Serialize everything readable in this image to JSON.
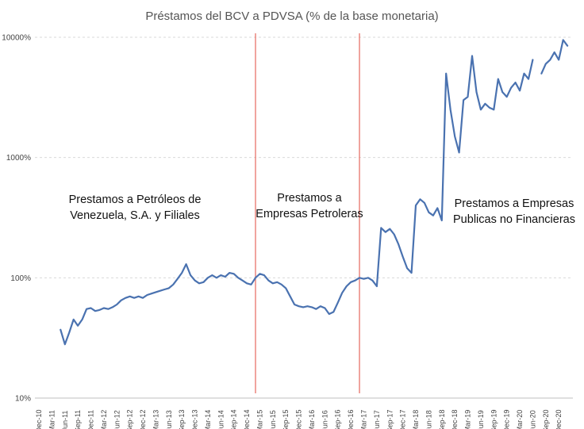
{
  "chart_data": {
    "type": "line",
    "title": "Préstamos del BCV a PDVSA (% de la base monetaria)",
    "xlabel": "",
    "ylabel": "",
    "y_scale": "log",
    "ylim": [
      10,
      10000
    ],
    "y_ticks": [
      {
        "value": 10,
        "label": "10%"
      },
      {
        "value": 100,
        "label": "100%"
      },
      {
        "value": 1000,
        "label": "1000%"
      },
      {
        "value": 10000,
        "label": "10000%"
      }
    ],
    "x_ticks": [
      "Dec-10",
      "Mar-11",
      "Jun-11",
      "Sep-11",
      "Dec-11",
      "Mar-12",
      "Jun-12",
      "Sep-12",
      "Dec-12",
      "Mar-13",
      "Jun-13",
      "Sep-13",
      "Dec-13",
      "Mar-14",
      "Jun-14",
      "Sep-14",
      "Dec-14",
      "Mar-15",
      "Jun-15",
      "Sep-15",
      "Dec-15",
      "Mar-16",
      "Jun-16",
      "Sep-16",
      "Dec-16",
      "Mar-17",
      "Jun-17",
      "Sep-17",
      "Dec-17",
      "Mar-18",
      "Jun-18",
      "Sep-18",
      "Dec-18",
      "Mar-19",
      "Jun-19",
      "Sep-19",
      "Dec-19",
      "Mar-20",
      "Jun-20",
      "Sep-20",
      "Dec-20"
    ],
    "grid": "horizontal dashed",
    "legend": "none",
    "colors": {
      "line": "#4a72b0",
      "divider": "#e8746a",
      "grid": "#d9d9d9"
    },
    "dividers": [
      "Feb-15",
      "Feb-17"
    ],
    "annotations": [
      {
        "lines": [
          "Prestamos a Petróleos de",
          "Venezuela, S.A. y Filiales"
        ]
      },
      {
        "lines": [
          "Prestamos a",
          "Empresas Petroleras"
        ]
      },
      {
        "lines": [
          "Prestamos a Empresas",
          "Publicas no Financieras"
        ]
      }
    ],
    "series": [
      {
        "points": [
          [
            "May-11",
            37
          ],
          [
            "Jun-11",
            28
          ],
          [
            "Jul-11",
            35
          ],
          [
            "Aug-11",
            45
          ],
          [
            "Sep-11",
            40
          ],
          [
            "Oct-11",
            45
          ],
          [
            "Nov-11",
            55
          ],
          [
            "Dec-11",
            56
          ],
          [
            "Jan-12",
            53
          ],
          [
            "Feb-12",
            54
          ],
          [
            "Mar-12",
            56
          ],
          [
            "Apr-12",
            55
          ],
          [
            "May-12",
            57
          ],
          [
            "Jun-12",
            60
          ],
          [
            "Jul-12",
            65
          ],
          [
            "Aug-12",
            68
          ],
          [
            "Sep-12",
            70
          ],
          [
            "Oct-12",
            68
          ],
          [
            "Nov-12",
            70
          ],
          [
            "Dec-12",
            68
          ],
          [
            "Jan-13",
            72
          ],
          [
            "Feb-13",
            74
          ],
          [
            "Mar-13",
            76
          ],
          [
            "Apr-13",
            78
          ],
          [
            "May-13",
            80
          ],
          [
            "Jun-13",
            82
          ],
          [
            "Jul-13",
            88
          ],
          [
            "Aug-13",
            98
          ],
          [
            "Sep-13",
            110
          ],
          [
            "Oct-13",
            130
          ],
          [
            "Nov-13",
            105
          ],
          [
            "Dec-13",
            95
          ],
          [
            "Jan-14",
            90
          ],
          [
            "Feb-14",
            92
          ],
          [
            "Mar-14",
            100
          ],
          [
            "Apr-14",
            105
          ],
          [
            "May-14",
            100
          ],
          [
            "Jun-14",
            105
          ],
          [
            "Jul-14",
            102
          ],
          [
            "Aug-14",
            110
          ],
          [
            "Sep-14",
            108
          ],
          [
            "Oct-14",
            100
          ],
          [
            "Nov-14",
            95
          ],
          [
            "Dec-14",
            90
          ],
          [
            "Jan-15",
            88
          ],
          [
            "Feb-15",
            100
          ],
          [
            "Mar-15",
            108
          ],
          [
            "Apr-15",
            105
          ],
          [
            "May-15",
            95
          ],
          [
            "Jun-15",
            90
          ],
          [
            "Jul-15",
            92
          ],
          [
            "Aug-15",
            88
          ],
          [
            "Sep-15",
            82
          ],
          [
            "Oct-15",
            70
          ],
          [
            "Nov-15",
            60
          ],
          [
            "Dec-15",
            58
          ],
          [
            "Jan-16",
            57
          ],
          [
            "Feb-16",
            58
          ],
          [
            "Mar-16",
            57
          ],
          [
            "Apr-16",
            55
          ],
          [
            "May-16",
            58
          ],
          [
            "Jun-16",
            56
          ],
          [
            "Jul-16",
            50
          ],
          [
            "Aug-16",
            52
          ],
          [
            "Sep-16",
            62
          ],
          [
            "Oct-16",
            75
          ],
          [
            "Nov-16",
            85
          ],
          [
            "Dec-16",
            92
          ],
          [
            "Jan-17",
            95
          ],
          [
            "Feb-17",
            100
          ],
          [
            "Mar-17",
            98
          ],
          [
            "Apr-17",
            100
          ],
          [
            "May-17",
            95
          ],
          [
            "Jun-17",
            85
          ],
          [
            "Jul-17",
            260
          ],
          [
            "Aug-17",
            240
          ],
          [
            "Sep-17",
            255
          ],
          [
            "Oct-17",
            230
          ],
          [
            "Nov-17",
            190
          ],
          [
            "Dec-17",
            150
          ],
          [
            "Jan-18",
            120
          ],
          [
            "Feb-18",
            110
          ],
          [
            "Mar-18",
            400
          ],
          [
            "Apr-18",
            450
          ],
          [
            "May-18",
            420
          ],
          [
            "Jun-18",
            350
          ],
          [
            "Jul-18",
            330
          ],
          [
            "Aug-18",
            380
          ],
          [
            "Sep-18",
            300
          ],
          [
            "Oct-18",
            5000
          ],
          [
            "Nov-18",
            2500
          ],
          [
            "Dec-18",
            1500
          ],
          [
            "Jan-19",
            1100
          ],
          [
            "Feb-19",
            3000
          ],
          [
            "Mar-19",
            3200
          ],
          [
            "Apr-19",
            7000
          ],
          [
            "May-19",
            3500
          ],
          [
            "Jun-19",
            2500
          ],
          [
            "Jul-19",
            2800
          ],
          [
            "Aug-19",
            2600
          ],
          [
            "Sep-19",
            2500
          ],
          [
            "Oct-19",
            4500
          ],
          [
            "Nov-19",
            3500
          ],
          [
            "Dec-19",
            3200
          ],
          [
            "Jan-20",
            3800
          ],
          [
            "Feb-20",
            4200
          ],
          [
            "Mar-20",
            3600
          ],
          [
            "Apr-20",
            5000
          ],
          [
            "May-20",
            4500
          ],
          [
            "Jun-20",
            6500
          ],
          null,
          [
            "Aug-20",
            5000
          ],
          [
            "Sep-20",
            6000
          ],
          [
            "Oct-20",
            6500
          ],
          [
            "Nov-20",
            7500
          ],
          [
            "Dec-20",
            6500
          ],
          [
            "Jan-21",
            9500
          ],
          [
            "Feb-21",
            8500
          ]
        ]
      }
    ]
  }
}
